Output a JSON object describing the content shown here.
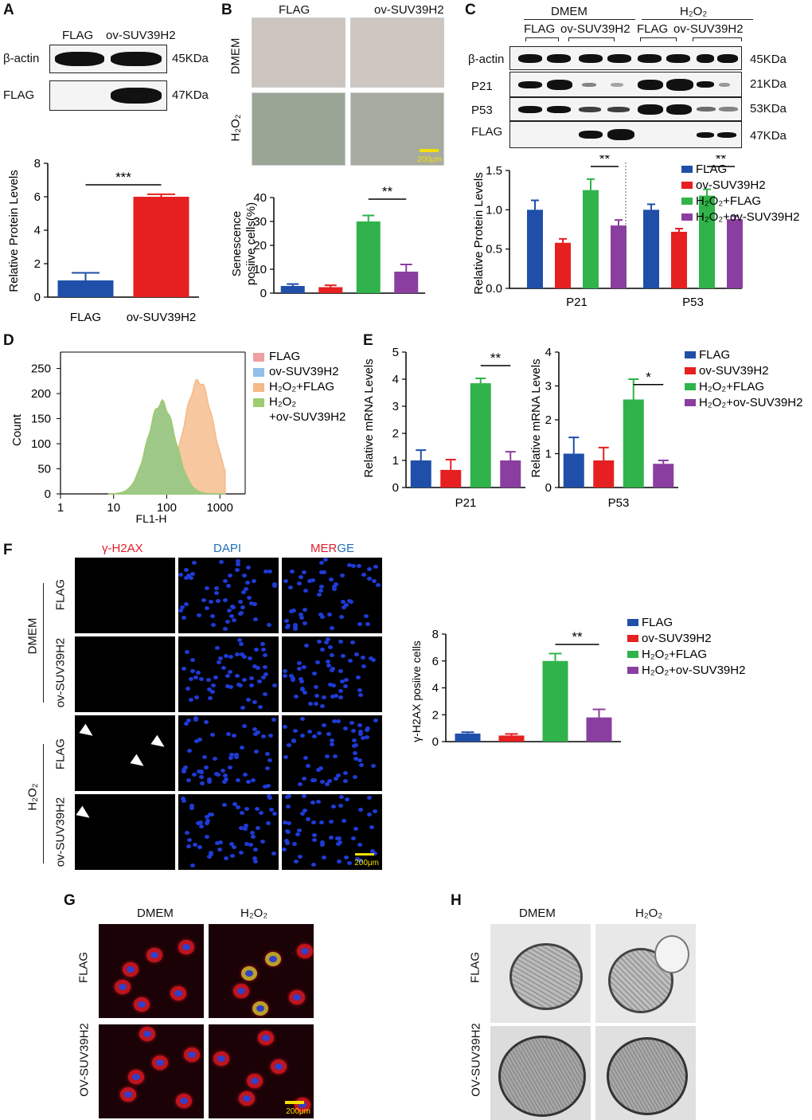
{
  "panels": {
    "A": {
      "label": "A",
      "lanes": [
        "FLAG",
        "ov-SUV39H2"
      ],
      "bands": [
        {
          "name": "β-actin",
          "size": "45KDa"
        },
        {
          "name": "FLAG",
          "size": "47KDa"
        }
      ],
      "chart_data": {
        "type": "bar",
        "categories": [
          "FLAG",
          "ov-SUV39H2"
        ],
        "values": [
          1.0,
          6.0
        ],
        "errors": [
          0.45,
          0.15
        ],
        "colors": [
          "#1f4fa8",
          "#e62020"
        ],
        "ylabel": "Relative Protein Levels",
        "ylim": [
          0,
          8
        ],
        "yticks": [
          0,
          2,
          4,
          6,
          8
        ],
        "significance": "***"
      }
    },
    "B": {
      "label": "B",
      "columns": [
        "FLAG",
        "ov-SUV39H2"
      ],
      "rows": [
        "DMEM",
        "H₂O₂"
      ],
      "scale_bar": "200μm",
      "chart_data": {
        "type": "bar",
        "categories": [
          "FLAG",
          "ov-SUV39H2",
          "H₂O₂+FLAG",
          "H₂O₂+ov-SUV39H2"
        ],
        "values": [
          3,
          2.5,
          30,
          9
        ],
        "errors": [
          0.8,
          0.8,
          2.5,
          3
        ],
        "colors": [
          "#1f4fa8",
          "#e62020",
          "#2fb34a",
          "#8a3fa0"
        ],
        "ylabel": [
          "Senescence",
          "posiive cells(%)"
        ],
        "ylim": [
          0,
          40
        ],
        "yticks": [
          0,
          10,
          20,
          30,
          40
        ],
        "significance": "**"
      }
    },
    "C": {
      "label": "C",
      "groups": [
        "DMEM",
        "H₂O₂"
      ],
      "lanes": [
        "FLAG",
        "ov-SUV39H2",
        "FLAG",
        "ov-SUV39H2"
      ],
      "bands": [
        {
          "name": "β-actin",
          "size": "45KDa"
        },
        {
          "name": "P21",
          "size": "21KDa"
        },
        {
          "name": "P53",
          "size": "53KDa"
        },
        {
          "name": "FLAG",
          "size": "47KDa"
        }
      ],
      "chart_data": {
        "type": "bar",
        "categories": [
          "P21",
          "P53"
        ],
        "series": [
          {
            "name": "FLAG",
            "values": [
              1.0,
              1.0
            ],
            "errors": [
              0.12,
              0.07
            ],
            "color": "#1f4fa8"
          },
          {
            "name": "ov-SUV39H2",
            "values": [
              0.58,
              0.72
            ],
            "errors": [
              0.05,
              0.04
            ],
            "color": "#e62020"
          },
          {
            "name": "H₂O₂+FLAG",
            "values": [
              1.25,
              1.18
            ],
            "errors": [
              0.14,
              0.08
            ],
            "color": "#2fb34a"
          },
          {
            "name": "H₂O₂+ov-SUV39H2",
            "values": [
              0.8,
              0.88
            ],
            "errors": [
              0.07,
              0.04
            ],
            "color": "#8a3fa0"
          }
        ],
        "ylabel": "Relative Protein Levels",
        "ylim": [
          0,
          1.5
        ],
        "yticks": [
          "0.0",
          "0.5",
          "1.0",
          "1.5"
        ],
        "significance": [
          "**",
          "**"
        ],
        "legend_position": "right"
      }
    },
    "D": {
      "label": "D",
      "chart_data": {
        "type": "area",
        "xlabel": "FL1-H",
        "ylabel": "Count",
        "xscale": "log",
        "xlim": [
          1,
          3000
        ],
        "ylim": [
          0,
          270
        ],
        "xticks": [
          "1",
          "10",
          "100",
          "1000"
        ],
        "yticks": [
          "0",
          "50",
          "100",
          "150",
          "200",
          "250"
        ],
        "series": [
          {
            "name": "FLAG",
            "color": "#f0a0a0",
            "peak_x": 80,
            "peak_y": 180
          },
          {
            "name": "ov-SUV39H2",
            "color": "#90c0e8",
            "peak_x": 80,
            "peak_y": 175
          },
          {
            "name": "H₂O₂+FLAG",
            "color": "#f5b985",
            "peak_x": 400,
            "peak_y": 225
          },
          {
            "name": "H₂O₂\n+ov-SUV39H2",
            "color": "#9ccc70",
            "peak_x": 80,
            "peak_y": 182
          }
        ],
        "legend": [
          "FLAG",
          "ov-SUV39H2",
          "H₂O₂+FLAG",
          "H₂O₂",
          "+ov-SUV39H2"
        ]
      }
    },
    "E": {
      "label": "E",
      "chart_data": [
        {
          "type": "bar",
          "xlabel": "P21",
          "ylabel": "Relative mRNA Levels",
          "categories": [
            "FLAG",
            "ov-SUV39H2",
            "H₂O₂+FLAG",
            "H₂O₂+ov-SUV39H2"
          ],
          "values": [
            1.0,
            0.65,
            3.85,
            1.0
          ],
          "errors": [
            0.38,
            0.38,
            0.18,
            0.32
          ],
          "colors": [
            "#1f4fa8",
            "#e62020",
            "#2fb34a",
            "#8a3fa0"
          ],
          "ylim": [
            0,
            5
          ],
          "yticks": [
            0,
            1,
            2,
            3,
            4,
            5
          ],
          "significance": "**"
        },
        {
          "type": "bar",
          "xlabel": "P53",
          "ylabel": "Relative mRNA Levels",
          "categories": [
            "FLAG",
            "ov-SUV39H2",
            "H₂O₂+FLAG",
            "H₂O₂+ov-SUV39H2"
          ],
          "values": [
            1.0,
            0.8,
            2.6,
            0.7
          ],
          "errors": [
            0.48,
            0.38,
            0.6,
            0.1
          ],
          "colors": [
            "#1f4fa8",
            "#e62020",
            "#2fb34a",
            "#8a3fa0"
          ],
          "ylim": [
            0,
            4
          ],
          "yticks": [
            0,
            1,
            2,
            3,
            4
          ],
          "significance": "*"
        }
      ],
      "legend": [
        "FLAG",
        "ov-SUV39H2",
        "H₂O₂+FLAG",
        "H₂O₂+ov-SUV39H2"
      ]
    },
    "F": {
      "label": "F",
      "columns": [
        "γ-H2AX",
        "DAPI",
        "MER",
        "GE"
      ],
      "groups": [
        "DMEM",
        "H₂O₂"
      ],
      "rows": [
        "FLAG",
        "ov-SUV39H2",
        "FLAG",
        "ov-SUV39H2"
      ],
      "scale_bar": "200μm",
      "chart_data": {
        "type": "bar",
        "categories": [
          "FLAG",
          "ov-SUV39H2",
          "H₂O₂+FLAG",
          "H₂O₂+ov-SUV39H2"
        ],
        "values": [
          0.6,
          0.45,
          6.0,
          1.8
        ],
        "errors": [
          0.1,
          0.12,
          0.55,
          0.6
        ],
        "colors": [
          "#1f4fa8",
          "#e62020",
          "#2fb34a",
          "#8a3fa0"
        ],
        "ylabel": "γ-H2AX posiive cells",
        "ylim": [
          0,
          8
        ],
        "yticks": [
          0,
          2,
          4,
          6,
          8
        ],
        "significance": "**"
      }
    },
    "G": {
      "label": "G",
      "columns": [
        "DMEM",
        "H₂O₂"
      ],
      "rows": [
        "FLAG",
        "OV-SUV39H2"
      ],
      "scale_bar": "200μm"
    },
    "H": {
      "label": "H",
      "columns": [
        "DMEM",
        "H₂O₂"
      ],
      "rows": [
        "FLAG",
        "OV-SUV39H2"
      ]
    }
  }
}
